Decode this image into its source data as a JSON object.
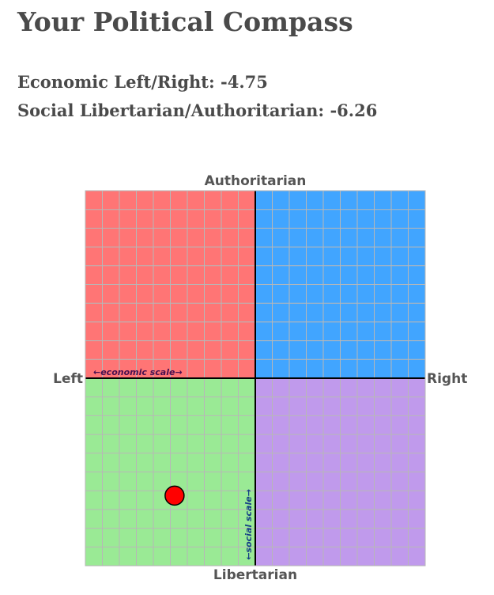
{
  "page": {
    "title": "Your Political Compass"
  },
  "scores": {
    "economic_label": "Economic Left/Right: -4.75",
    "social_label": "Social Libertarian/Authoritarian: -6.26"
  },
  "chart_data": {
    "type": "scatter",
    "title": "",
    "axis_labels": {
      "top": "Authoritarian",
      "bottom": "Libertarian",
      "left": "Left",
      "right": "Right"
    },
    "scale_labels": {
      "economic": "←economic scale→",
      "social": "←social scale→"
    },
    "xlim": [
      -10,
      10
    ],
    "ylim": [
      -10,
      10
    ],
    "grid": true,
    "grid_step": 1,
    "quadrants": [
      {
        "name": "authoritarian-left",
        "color": "#ff7575"
      },
      {
        "name": "authoritarian-right",
        "color": "#41a5ff"
      },
      {
        "name": "libertarian-left",
        "color": "#9aea95"
      },
      {
        "name": "libertarian-right",
        "color": "#c09aec"
      }
    ],
    "points": [
      {
        "x": -4.75,
        "y": -6.26,
        "color": "#ff0000"
      }
    ]
  },
  "colors": {
    "grid": "#b7b7b7",
    "axis": "#000000",
    "economic_scale_text": "#4a1050",
    "social_scale_text": "#153f86"
  }
}
